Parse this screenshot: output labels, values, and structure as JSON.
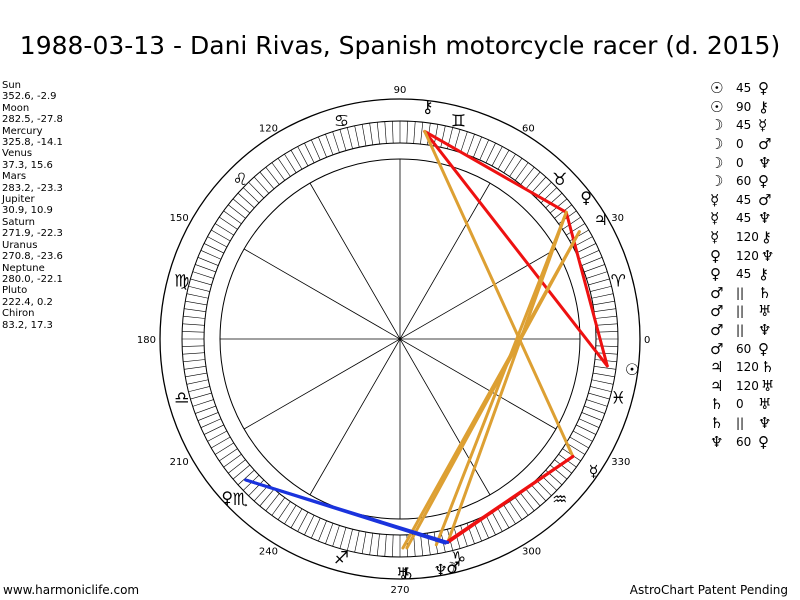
{
  "title": "1988-03-13 - Dani Rivas, Spanish motorcycle racer (d. 2015)",
  "positions": [
    {
      "name": "Sun",
      "value": "352.6, -2.9"
    },
    {
      "name": "Moon",
      "value": "282.5, -27.8"
    },
    {
      "name": "Mercury",
      "value": "325.8, -14.1"
    },
    {
      "name": "Venus",
      "value": "37.3, 15.6"
    },
    {
      "name": "Mars",
      "value": "283.2, -23.3"
    },
    {
      "name": "Jupiter",
      "value": "30.9, 10.9"
    },
    {
      "name": "Saturn",
      "value": "271.9, -22.3"
    },
    {
      "name": "Uranus",
      "value": "270.8, -23.6"
    },
    {
      "name": "Neptune",
      "value": "280.0, -22.1"
    },
    {
      "name": "Pluto",
      "value": "222.4, 0.2"
    },
    {
      "name": "Chiron",
      "value": "83.2, 17.3"
    }
  ],
  "degree_labels": [
    "0",
    "30",
    "60",
    "90",
    "120",
    "150",
    "180",
    "210",
    "240",
    "270",
    "300",
    "330"
  ],
  "zodiac_glyphs": [
    "♈",
    "♉",
    "♊",
    "♋",
    "♌",
    "♍",
    "♎",
    "♏",
    "♐",
    "♑",
    "♒",
    "♓"
  ],
  "planets": [
    {
      "key": "sun",
      "glyph": "☉",
      "lon": 352.6
    },
    {
      "key": "moon",
      "glyph": "☽",
      "lon": 282.5
    },
    {
      "key": "mercury",
      "glyph": "☿",
      "lon": 325.8
    },
    {
      "key": "venus",
      "glyph": "♀",
      "lon": 37.3
    },
    {
      "key": "mars",
      "glyph": "♂",
      "lon": 283.2
    },
    {
      "key": "jupiter",
      "glyph": "♃",
      "lon": 30.9
    },
    {
      "key": "saturn",
      "glyph": "♄",
      "lon": 271.9
    },
    {
      "key": "uranus",
      "glyph": "♅",
      "lon": 270.8
    },
    {
      "key": "neptune",
      "glyph": "♆",
      "lon": 280.0
    },
    {
      "key": "pluto",
      "glyph": "♀",
      "lon": 222.4
    },
    {
      "key": "chiron",
      "glyph": "⚷",
      "lon": 83.2
    }
  ],
  "aspect_lines": [
    {
      "a": "sun",
      "b": "chiron",
      "color": "#ee1111"
    },
    {
      "a": "sun",
      "b": "venus",
      "color": "#ee1111"
    },
    {
      "a": "venus",
      "b": "chiron",
      "color": "#ee1111"
    },
    {
      "a": "venus",
      "b": "mars",
      "color": "#dda033"
    },
    {
      "a": "venus",
      "b": "neptune",
      "color": "#dda033"
    },
    {
      "a": "jupiter",
      "b": "saturn",
      "color": "#dda033"
    },
    {
      "a": "jupiter",
      "b": "uranus",
      "color": "#dda033"
    },
    {
      "a": "mercury",
      "b": "chiron",
      "color": "#dda033"
    },
    {
      "a": "moon",
      "b": "mercury",
      "color": "#ee1111"
    },
    {
      "a": "mars",
      "b": "mercury",
      "color": "#ee1111"
    },
    {
      "a": "pluto",
      "b": "mars",
      "color": "#1a33dd"
    },
    {
      "a": "pluto",
      "b": "moon",
      "color": "#1a33dd"
    }
  ],
  "aspects": [
    {
      "p1": "☉",
      "sym": "45",
      "p2": "♀"
    },
    {
      "p1": "☉",
      "sym": "90",
      "p2": "⚷"
    },
    {
      "p1": "☽",
      "sym": "45",
      "p2": "☿"
    },
    {
      "p1": "☽",
      "sym": "0",
      "p2": "♂"
    },
    {
      "p1": "☽",
      "sym": "0",
      "p2": "♆"
    },
    {
      "p1": "☽",
      "sym": "60",
      "p2": "♀"
    },
    {
      "p1": "☿",
      "sym": "45",
      "p2": "♂"
    },
    {
      "p1": "☿",
      "sym": "45",
      "p2": "♆"
    },
    {
      "p1": "☿",
      "sym": "120",
      "p2": "⚷"
    },
    {
      "p1": "♀",
      "sym": "120",
      "p2": "♆"
    },
    {
      "p1": "♀",
      "sym": "45",
      "p2": "⚷"
    },
    {
      "p1": "♂",
      "sym": "||",
      "p2": "♄"
    },
    {
      "p1": "♂",
      "sym": "||",
      "p2": "♅"
    },
    {
      "p1": "♂",
      "sym": "||",
      "p2": "♆"
    },
    {
      "p1": "♂",
      "sym": "60",
      "p2": "♀"
    },
    {
      "p1": "♃",
      "sym": "120",
      "p2": "♄"
    },
    {
      "p1": "♃",
      "sym": "120",
      "p2": "♅"
    },
    {
      "p1": "♄",
      "sym": "0",
      "p2": "♅"
    },
    {
      "p1": "♄",
      "sym": "||",
      "p2": "♆"
    },
    {
      "p1": "♆",
      "sym": "60",
      "p2": "♀"
    }
  ],
  "footer": {
    "left": "www.harmoniclife.com",
    "right": "AstroChart Patent Pending"
  },
  "colors": {
    "square": "#ee1111",
    "trine": "#dda033",
    "parallel": "#1a33dd"
  }
}
